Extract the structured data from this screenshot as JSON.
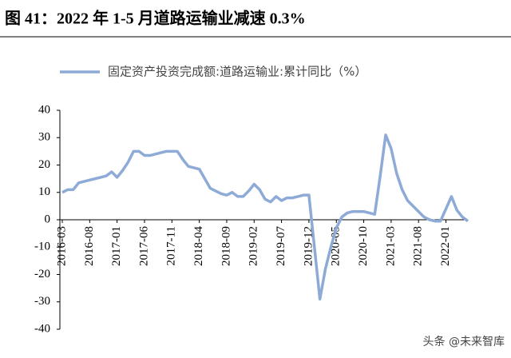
{
  "chart_data": {
    "type": "line",
    "title": "图 41：2022 年 1-5 月道路运输业减速 0.3%",
    "watermark": "头条 @未来智库",
    "categories": [
      "2016-03",
      null,
      null,
      null,
      null,
      "2016-08",
      null,
      null,
      null,
      null,
      "2017-01",
      null,
      null,
      null,
      null,
      "2017-06",
      null,
      null,
      null,
      null,
      "2017-11",
      null,
      null,
      null,
      null,
      "2018-04",
      null,
      null,
      null,
      null,
      "2018-09",
      null,
      null,
      null,
      null,
      "2019-02",
      null,
      null,
      null,
      null,
      "2019-07",
      null,
      null,
      null,
      null,
      "2019-12",
      null,
      null,
      null,
      null,
      "2020-05",
      null,
      null,
      null,
      null,
      "2020-10",
      null,
      null,
      null,
      null,
      "2021-03",
      null,
      null,
      null,
      null,
      "2021-08",
      null,
      null,
      null,
      null,
      "2022-01",
      null,
      null,
      null,
      null
    ],
    "series": [
      {
        "name": "固定资产投资完成额:道路运输业:累计同比（%）",
        "color": "#8eaad6",
        "values": [
          10,
          11,
          11,
          13.5,
          14,
          14.5,
          15,
          15.5,
          16,
          17.5,
          15.5,
          18,
          21,
          25,
          25,
          23.5,
          23.5,
          24,
          24.5,
          25,
          25,
          25,
          22,
          19.5,
          19,
          18.5,
          15,
          11.5,
          10.5,
          9.5,
          9,
          10,
          8.5,
          8.5,
          10.5,
          13,
          11,
          7.5,
          6.5,
          8.5,
          7,
          8,
          8,
          8.5,
          9,
          9,
          -10,
          -29,
          -18,
          -10,
          -3,
          1,
          2.5,
          3,
          3,
          3,
          2.5,
          2,
          16,
          31,
          26,
          17,
          11,
          7,
          5,
          3,
          1,
          0,
          -0.5,
          -0.5,
          4,
          8.5,
          3.5,
          1,
          -0.5
        ]
      }
    ],
    "ylim": [
      -40,
      40
    ],
    "yticks": [
      -40,
      -30,
      -20,
      -10,
      0,
      10,
      20,
      30,
      40
    ],
    "grid": false
  }
}
